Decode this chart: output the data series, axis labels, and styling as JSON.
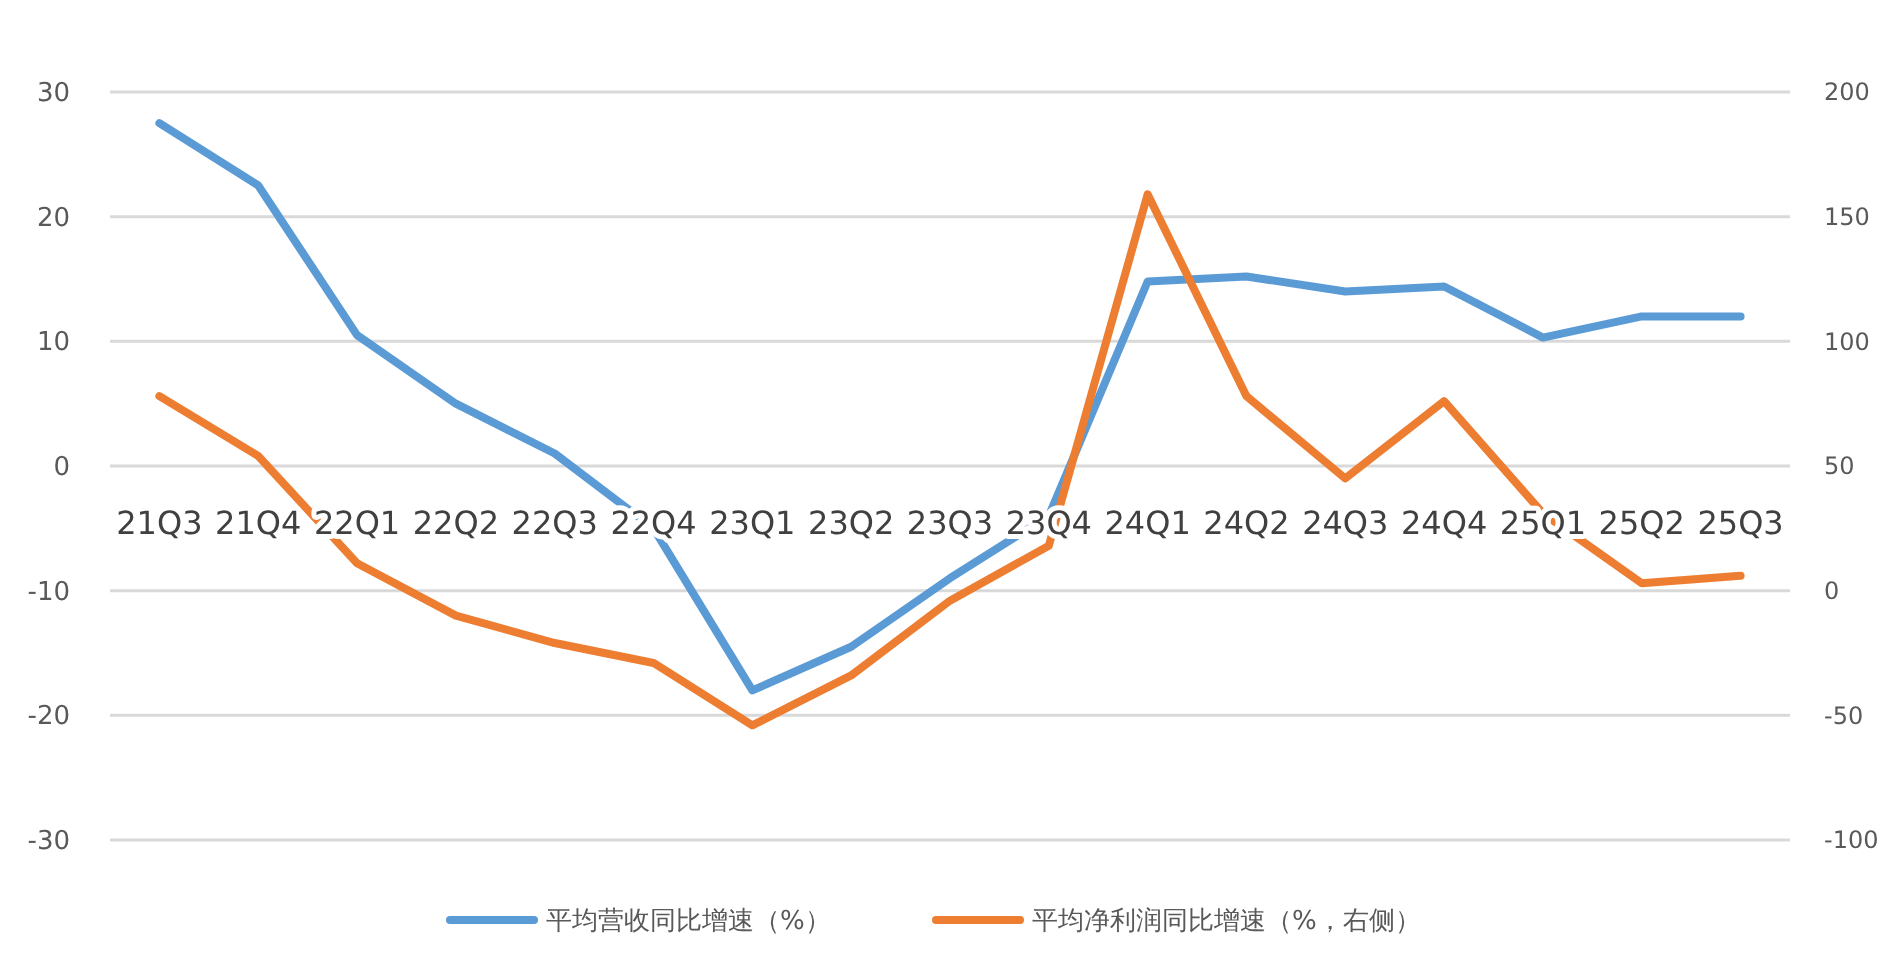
{
  "chart_data": {
    "type": "line",
    "categories": [
      "21Q3",
      "21Q4",
      "22Q1",
      "22Q2",
      "22Q3",
      "22Q4",
      "23Q1",
      "23Q2",
      "23Q3",
      "23Q4",
      "24Q1",
      "24Q2",
      "24Q3",
      "24Q4",
      "25Q1",
      "25Q2",
      "25Q3"
    ],
    "series": [
      {
        "name": "平均营收同比增速（%）",
        "color": "#5b9bd5",
        "values": [
          27.5,
          22.5,
          10.5,
          5,
          1,
          -5,
          -18,
          -14.5,
          -9,
          -4,
          14.8,
          15.2,
          14,
          14.4,
          10.3,
          12,
          12
        ]
      },
      {
        "name": "平均净利润同比增速（%，右侧）",
        "color": "#ed7d31",
        "axis": "y2",
        "values": [
          78,
          54,
          11,
          -10,
          -21,
          -29,
          -54,
          -34,
          -4,
          18,
          159,
          78,
          45,
          76,
          31,
          3,
          6
        ]
      }
    ],
    "ylim": [
      -30,
      30
    ],
    "yticks": [
      -30,
      -20,
      -10,
      0,
      10,
      20,
      30
    ],
    "y2lim": [
      -100,
      200
    ],
    "y2ticks": [
      -100,
      -50,
      0,
      50,
      100,
      150,
      200
    ],
    "grid": "y",
    "legend": "bottom",
    "marker": "none",
    "line_style": "solid"
  }
}
